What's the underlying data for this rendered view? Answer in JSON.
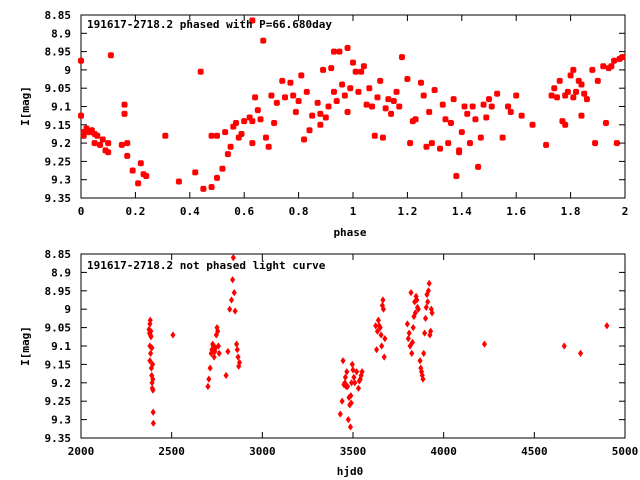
{
  "chart_data": [
    {
      "type": "scatter",
      "title": "191617-2718.2 phased with P=66.680day",
      "xlabel": "phase",
      "ylabel": "I[mag]",
      "xlim": [
        0,
        2
      ],
      "ylim": [
        8.85,
        9.35
      ],
      "y_inverted": true,
      "grid": false,
      "legend": "none",
      "marker_color": "#ff0000",
      "marker": "star",
      "x_ticks": [
        "0",
        "0.2",
        "0.4",
        "0.6",
        "0.8",
        "1",
        "1.2",
        "1.4",
        "1.6",
        "1.8",
        "2"
      ],
      "y_ticks": [
        "8.85",
        "8.9",
        "8.95",
        "9",
        "9.05",
        "9.1",
        "9.15",
        "9.2",
        "9.25",
        "9.3",
        "9.35"
      ],
      "x_tick_values": [
        0,
        0.2,
        0.4,
        0.6,
        0.8,
        1.0,
        1.2,
        1.4,
        1.6,
        1.8,
        2.0
      ],
      "y_tick_values": [
        8.85,
        8.9,
        8.95,
        9.0,
        9.05,
        9.1,
        9.15,
        9.2,
        9.25,
        9.3,
        9.35
      ],
      "points": [
        [
          0.0,
          8.975
        ],
        [
          0.0,
          9.125
        ],
        [
          0.01,
          9.17
        ],
        [
          0.01,
          9.18
        ],
        [
          0.02,
          9.16
        ],
        [
          0.03,
          9.17
        ],
        [
          0.04,
          9.165
        ],
        [
          0.05,
          9.175
        ],
        [
          0.05,
          9.2
        ],
        [
          0.06,
          9.18
        ],
        [
          0.07,
          9.205
        ],
        [
          0.08,
          9.19
        ],
        [
          0.09,
          9.22
        ],
        [
          0.1,
          9.225
        ],
        [
          0.1,
          9.2
        ],
        [
          0.11,
          8.96
        ],
        [
          0.15,
          9.205
        ],
        [
          0.16,
          9.12
        ],
        [
          0.16,
          9.095
        ],
        [
          0.17,
          9.235
        ],
        [
          0.17,
          9.2
        ],
        [
          0.19,
          9.275
        ],
        [
          0.21,
          9.31
        ],
        [
          0.22,
          9.255
        ],
        [
          0.23,
          9.285
        ],
        [
          0.24,
          9.29
        ],
        [
          0.31,
          9.18
        ],
        [
          0.36,
          9.305
        ],
        [
          0.42,
          9.28
        ],
        [
          0.44,
          9.005
        ],
        [
          0.45,
          9.325
        ],
        [
          0.48,
          9.32
        ],
        [
          0.48,
          9.18
        ],
        [
          0.5,
          9.295
        ],
        [
          0.5,
          9.18
        ],
        [
          0.52,
          9.27
        ],
        [
          0.53,
          9.17
        ],
        [
          0.54,
          9.23
        ],
        [
          0.55,
          9.21
        ],
        [
          0.56,
          9.155
        ],
        [
          0.57,
          9.145
        ],
        [
          0.58,
          9.185
        ],
        [
          0.59,
          9.175
        ],
        [
          0.6,
          9.14
        ],
        [
          0.62,
          9.13
        ],
        [
          0.63,
          9.14
        ],
        [
          0.63,
          9.2
        ],
        [
          0.63,
          8.865
        ],
        [
          0.64,
          9.075
        ],
        [
          0.65,
          9.11
        ],
        [
          0.66,
          9.135
        ],
        [
          0.67,
          8.92
        ],
        [
          0.68,
          9.185
        ],
        [
          0.69,
          9.21
        ],
        [
          0.7,
          9.07
        ],
        [
          0.71,
          9.145
        ],
        [
          0.72,
          9.09
        ],
        [
          0.74,
          9.03
        ],
        [
          0.75,
          9.075
        ],
        [
          0.77,
          9.035
        ],
        [
          0.78,
          9.07
        ],
        [
          0.79,
          9.115
        ],
        [
          0.8,
          9.085
        ],
        [
          0.81,
          9.015
        ],
        [
          0.82,
          9.19
        ],
        [
          0.83,
          9.06
        ],
        [
          0.84,
          9.165
        ],
        [
          0.85,
          9.125
        ],
        [
          0.87,
          9.09
        ],
        [
          0.88,
          9.12
        ],
        [
          0.88,
          9.15
        ],
        [
          0.89,
          9.0
        ],
        [
          0.9,
          9.13
        ],
        [
          0.91,
          9.1
        ],
        [
          0.92,
          8.995
        ],
        [
          0.93,
          9.06
        ],
        [
          0.93,
          8.95
        ],
        [
          0.94,
          9.085
        ],
        [
          0.95,
          8.95
        ],
        [
          0.96,
          9.04
        ],
        [
          0.97,
          9.07
        ],
        [
          0.98,
          8.94
        ],
        [
          0.98,
          9.115
        ],
        [
          0.99,
          9.05
        ],
        [
          1.0,
          8.98
        ],
        [
          1.01,
          9.005
        ],
        [
          1.02,
          9.06
        ],
        [
          1.03,
          9.005
        ],
        [
          1.04,
          8.99
        ],
        [
          1.05,
          9.095
        ],
        [
          1.06,
          9.05
        ],
        [
          1.07,
          9.1
        ],
        [
          1.08,
          9.18
        ],
        [
          1.09,
          9.075
        ],
        [
          1.1,
          9.03
        ],
        [
          1.11,
          9.185
        ],
        [
          1.12,
          9.105
        ],
        [
          1.13,
          9.08
        ],
        [
          1.14,
          9.12
        ],
        [
          1.15,
          9.085
        ],
        [
          1.16,
          9.06
        ],
        [
          1.17,
          9.1
        ],
        [
          1.18,
          8.965
        ],
        [
          1.2,
          9.025
        ],
        [
          1.21,
          9.2
        ],
        [
          1.22,
          9.14
        ],
        [
          1.23,
          9.135
        ],
        [
          1.25,
          9.035
        ],
        [
          1.26,
          9.07
        ],
        [
          1.27,
          9.21
        ],
        [
          1.28,
          9.115
        ],
        [
          1.29,
          9.2
        ],
        [
          1.3,
          9.055
        ],
        [
          1.32,
          9.215
        ],
        [
          1.33,
          9.095
        ],
        [
          1.34,
          9.135
        ],
        [
          1.35,
          9.2
        ],
        [
          1.36,
          9.145
        ],
        [
          1.37,
          9.08
        ],
        [
          1.38,
          9.29
        ],
        [
          1.39,
          9.225
        ],
        [
          1.39,
          9.22
        ],
        [
          1.4,
          9.17
        ],
        [
          1.41,
          9.1
        ],
        [
          1.42,
          9.12
        ],
        [
          1.43,
          9.2
        ],
        [
          1.44,
          9.1
        ],
        [
          1.45,
          9.135
        ],
        [
          1.46,
          9.265
        ],
        [
          1.47,
          9.185
        ],
        [
          1.48,
          9.095
        ],
        [
          1.49,
          9.13
        ],
        [
          1.5,
          9.08
        ],
        [
          1.51,
          9.1
        ],
        [
          1.53,
          9.065
        ],
        [
          1.55,
          9.185
        ],
        [
          1.57,
          9.1
        ],
        [
          1.58,
          9.115
        ],
        [
          1.6,
          9.07
        ],
        [
          1.62,
          9.125
        ],
        [
          1.66,
          9.15
        ],
        [
          1.71,
          9.205
        ],
        [
          1.73,
          9.07
        ],
        [
          1.74,
          9.05
        ],
        [
          1.75,
          9.075
        ],
        [
          1.76,
          9.03
        ],
        [
          1.77,
          9.14
        ],
        [
          1.78,
          9.07
        ],
        [
          1.78,
          9.15
        ],
        [
          1.79,
          9.06
        ],
        [
          1.8,
          9.015
        ],
        [
          1.81,
          9.0
        ],
        [
          1.81,
          9.075
        ],
        [
          1.82,
          9.06
        ],
        [
          1.83,
          9.03
        ],
        [
          1.84,
          9.04
        ],
        [
          1.84,
          9.125
        ],
        [
          1.85,
          9.065
        ],
        [
          1.86,
          9.08
        ],
        [
          1.88,
          9.0
        ],
        [
          1.89,
          9.2
        ],
        [
          1.9,
          9.03
        ],
        [
          1.92,
          8.99
        ],
        [
          1.93,
          9.145
        ],
        [
          1.94,
          8.995
        ],
        [
          1.95,
          8.99
        ],
        [
          1.96,
          8.975
        ],
        [
          1.97,
          9.2
        ],
        [
          1.98,
          8.97
        ],
        [
          1.99,
          8.965
        ]
      ]
    },
    {
      "type": "scatter",
      "title": "191617-2718.2 not phased light curve",
      "xlabel": "hjd0",
      "ylabel": "I[mag]",
      "xlim": [
        2000,
        5000
      ],
      "ylim": [
        8.85,
        9.35
      ],
      "y_inverted": true,
      "grid": false,
      "legend": "none",
      "marker_color": "#ff0000",
      "marker": "diamond",
      "x_ticks": [
        "2000",
        "2500",
        "3000",
        "3500",
        "4000",
        "4500",
        "5000"
      ],
      "y_ticks": [
        "8.85",
        "8.9",
        "8.95",
        "9",
        "9.05",
        "9.1",
        "9.15",
        "9.2",
        "9.25",
        "9.3",
        "9.35"
      ],
      "x_tick_values": [
        2000,
        2500,
        3000,
        3500,
        4000,
        4500,
        5000
      ],
      "y_tick_values": [
        8.85,
        8.9,
        8.95,
        9.0,
        9.05,
        9.1,
        9.15,
        9.2,
        9.25,
        9.3,
        9.35
      ],
      "points": [
        [
          2375,
          9.055
        ],
        [
          2378,
          9.065
        ],
        [
          2380,
          9.04
        ],
        [
          2382,
          9.03
        ],
        [
          2383,
          9.07
        ],
        [
          2385,
          9.06
        ],
        [
          2386,
          9.075
        ],
        [
          2380,
          9.14
        ],
        [
          2388,
          9.16
        ],
        [
          2390,
          9.18
        ],
        [
          2392,
          9.2
        ],
        [
          2391,
          9.105
        ],
        [
          2393,
          9.215
        ],
        [
          2395,
          9.15
        ],
        [
          2396,
          9.19
        ],
        [
          2397,
          9.22
        ],
        [
          2398,
          9.28
        ],
        [
          2399,
          9.31
        ],
        [
          2380,
          9.1
        ],
        [
          2384,
          9.12
        ],
        [
          2507,
          9.07
        ],
        [
          2700,
          9.21
        ],
        [
          2705,
          9.19
        ],
        [
          2712,
          9.16
        ],
        [
          2718,
          9.12
        ],
        [
          2722,
          9.11
        ],
        [
          2726,
          9.095
        ],
        [
          2730,
          9.1
        ],
        [
          2734,
          9.13
        ],
        [
          2738,
          9.115
        ],
        [
          2742,
          9.105
        ],
        [
          2746,
          9.07
        ],
        [
          2750,
          9.05
        ],
        [
          2754,
          9.06
        ],
        [
          2758,
          9.1
        ],
        [
          2762,
          9.12
        ],
        [
          2800,
          9.18
        ],
        [
          2810,
          9.115
        ],
        [
          2820,
          9.0
        ],
        [
          2830,
          8.975
        ],
        [
          2836,
          8.92
        ],
        [
          2840,
          8.86
        ],
        [
          2845,
          8.955
        ],
        [
          2850,
          9.005
        ],
        [
          2858,
          9.095
        ],
        [
          2862,
          9.11
        ],
        [
          2866,
          9.13
        ],
        [
          2870,
          9.155
        ],
        [
          2874,
          9.145
        ],
        [
          3430,
          9.285
        ],
        [
          3440,
          9.25
        ],
        [
          3445,
          9.14
        ],
        [
          3450,
          9.205
        ],
        [
          3455,
          9.2
        ],
        [
          3458,
          9.185
        ],
        [
          3462,
          9.21
        ],
        [
          3466,
          9.17
        ],
        [
          3470,
          9.21
        ],
        [
          3474,
          9.3
        ],
        [
          3478,
          9.24
        ],
        [
          3482,
          9.26
        ],
        [
          3486,
          9.32
        ],
        [
          3488,
          9.235
        ],
        [
          3490,
          9.255
        ],
        [
          3492,
          9.2
        ],
        [
          3496,
          9.15
        ],
        [
          3500,
          9.165
        ],
        [
          3505,
          9.185
        ],
        [
          3510,
          9.2
        ],
        [
          3520,
          9.17
        ],
        [
          3530,
          9.215
        ],
        [
          3535,
          9.195
        ],
        [
          3540,
          9.19
        ],
        [
          3545,
          9.18
        ],
        [
          3550,
          9.17
        ],
        [
          3625,
          9.045
        ],
        [
          3630,
          9.11
        ],
        [
          3635,
          9.06
        ],
        [
          3640,
          9.03
        ],
        [
          3645,
          9.045
        ],
        [
          3650,
          9.05
        ],
        [
          3655,
          9.07
        ],
        [
          3658,
          9.1
        ],
        [
          3662,
          8.99
        ],
        [
          3665,
          8.975
        ],
        [
          3668,
          9.0
        ],
        [
          3672,
          9.13
        ],
        [
          3676,
          9.08
        ],
        [
          3800,
          9.04
        ],
        [
          3805,
          9.08
        ],
        [
          3810,
          9.065
        ],
        [
          3815,
          9.1
        ],
        [
          3820,
          8.955
        ],
        [
          3824,
          9.12
        ],
        [
          3828,
          9.09
        ],
        [
          3832,
          9.05
        ],
        [
          3836,
          9.02
        ],
        [
          3840,
          8.98
        ],
        [
          3844,
          9.01
        ],
        [
          3848,
          8.965
        ],
        [
          3852,
          8.975
        ],
        [
          3856,
          8.995
        ],
        [
          3860,
          9.0
        ],
        [
          3870,
          9.14
        ],
        [
          3874,
          9.16
        ],
        [
          3878,
          9.17
        ],
        [
          3882,
          9.18
        ],
        [
          3886,
          9.19
        ],
        [
          3890,
          9.12
        ],
        [
          3895,
          9.065
        ],
        [
          3900,
          9.025
        ],
        [
          3904,
          8.995
        ],
        [
          3908,
          8.96
        ],
        [
          3912,
          8.98
        ],
        [
          3916,
          8.95
        ],
        [
          3920,
          8.93
        ],
        [
          3924,
          9.07
        ],
        [
          3928,
          9.06
        ],
        [
          3932,
          9.0
        ],
        [
          3936,
          9.01
        ],
        [
          4225,
          9.095
        ],
        [
          4665,
          9.1
        ],
        [
          4755,
          9.12
        ],
        [
          4900,
          9.045
        ]
      ]
    }
  ]
}
